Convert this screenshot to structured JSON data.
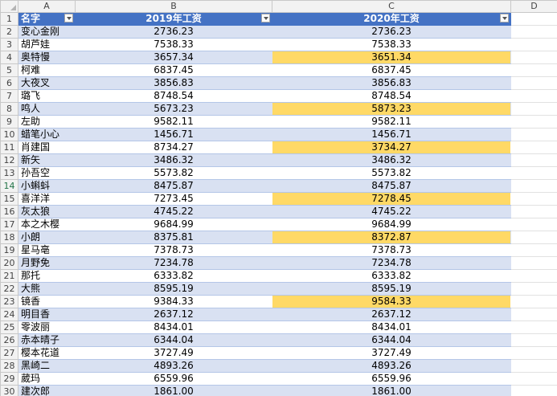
{
  "sheet": {
    "columns": [
      "A",
      "B",
      "C",
      "D"
    ],
    "header": {
      "name": "名字",
      "y2019": "2019年工资",
      "y2020": "2020年工资"
    },
    "rows": [
      {
        "num": "2",
        "name": "变心金刚",
        "y2019": "2736.23",
        "y2020": "2736.23",
        "hl": false
      },
      {
        "num": "3",
        "name": "胡芦娃",
        "y2019": "7538.33",
        "y2020": "7538.33",
        "hl": false
      },
      {
        "num": "4",
        "name": "奥特慢",
        "y2019": "3657.34",
        "y2020": "3651.34",
        "hl": true
      },
      {
        "num": "5",
        "name": "柯难",
        "y2019": "6837.45",
        "y2020": "6837.45",
        "hl": false
      },
      {
        "num": "6",
        "name": "大夜叉",
        "y2019": "3856.83",
        "y2020": "3856.83",
        "hl": false
      },
      {
        "num": "7",
        "name": "璐飞",
        "y2019": "8748.54",
        "y2020": "8748.54",
        "hl": false
      },
      {
        "num": "8",
        "name": "鸣人",
        "y2019": "5673.23",
        "y2020": "5873.23",
        "hl": true
      },
      {
        "num": "9",
        "name": "左助",
        "y2019": "9582.11",
        "y2020": "9582.11",
        "hl": false
      },
      {
        "num": "10",
        "name": "蜡笔小心",
        "y2019": "1456.71",
        "y2020": "1456.71",
        "hl": false
      },
      {
        "num": "11",
        "name": "肖建国",
        "y2019": "8734.27",
        "y2020": "3734.27",
        "hl": true
      },
      {
        "num": "12",
        "name": "新矢",
        "y2019": "3486.32",
        "y2020": "3486.32",
        "hl": false
      },
      {
        "num": "13",
        "name": "孙吾空",
        "y2019": "5573.82",
        "y2020": "5573.82",
        "hl": false
      },
      {
        "num": "14",
        "name": "小蝌蚪",
        "y2019": "8475.87",
        "y2020": "8475.87",
        "hl": false
      },
      {
        "num": "15",
        "name": "喜洋洋",
        "y2019": "7273.45",
        "y2020": "7278.45",
        "hl": true
      },
      {
        "num": "16",
        "name": "灰太狼",
        "y2019": "4745.22",
        "y2020": "4745.22",
        "hl": false
      },
      {
        "num": "17",
        "name": "本之木樱",
        "y2019": "9684.99",
        "y2020": "9684.99",
        "hl": false
      },
      {
        "num": "18",
        "name": "小朗",
        "y2019": "8375.81",
        "y2020": "8372.87",
        "hl": true
      },
      {
        "num": "19",
        "name": "星马亳",
        "y2019": "7378.73",
        "y2020": "7378.73",
        "hl": false
      },
      {
        "num": "20",
        "name": "月野免",
        "y2019": "7234.78",
        "y2020": "7234.78",
        "hl": false
      },
      {
        "num": "21",
        "name": "那托",
        "y2019": "6333.82",
        "y2020": "6333.82",
        "hl": false
      },
      {
        "num": "22",
        "name": "大熊",
        "y2019": "8595.19",
        "y2020": "8595.19",
        "hl": false
      },
      {
        "num": "23",
        "name": "镜香",
        "y2019": "9384.33",
        "y2020": "9584.33",
        "hl": true
      },
      {
        "num": "24",
        "name": "明目香",
        "y2019": "2637.12",
        "y2020": "2637.12",
        "hl": false
      },
      {
        "num": "25",
        "name": "零波丽",
        "y2019": "8434.01",
        "y2020": "8434.01",
        "hl": false
      },
      {
        "num": "26",
        "name": "赤本晴子",
        "y2019": "6344.04",
        "y2020": "6344.04",
        "hl": false
      },
      {
        "num": "27",
        "name": "樱本花道",
        "y2019": "3727.49",
        "y2020": "3727.49",
        "hl": false
      },
      {
        "num": "28",
        "name": "黑崎二",
        "y2019": "4893.26",
        "y2020": "4893.26",
        "hl": false
      },
      {
        "num": "29",
        "name": "葳玛",
        "y2019": "6559.96",
        "y2020": "6559.96",
        "hl": false
      },
      {
        "num": "30",
        "name": "建次郎",
        "y2019": "1861.00",
        "y2020": "1861.00",
        "hl": false
      }
    ],
    "colors": {
      "header_bg": "#4472c4",
      "band_bg": "#d9e1f2",
      "highlight_bg": "#ffd966"
    }
  }
}
